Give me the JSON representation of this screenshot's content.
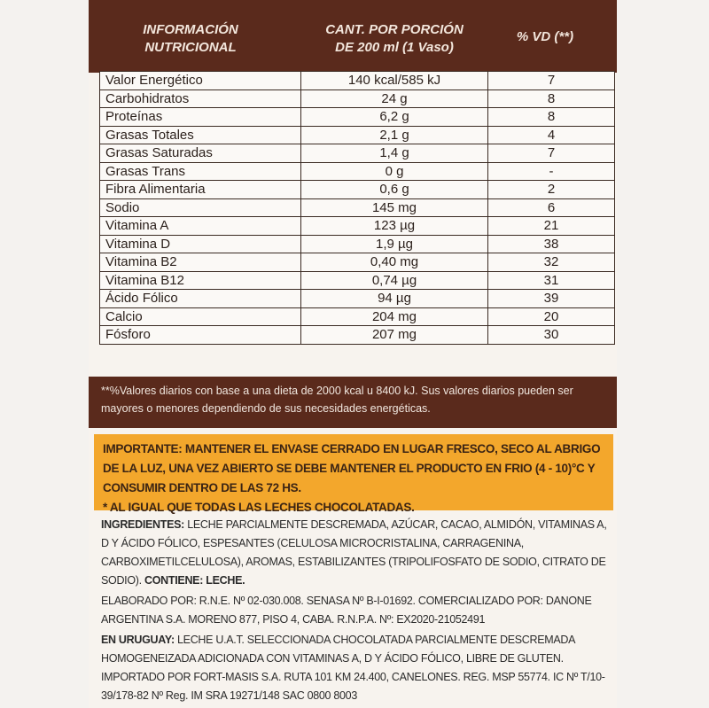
{
  "header": {
    "nutrition_title": [
      "INFORMACIÓN",
      "NUTRICIONAL"
    ],
    "portion_title": [
      "CANT. POR PORCIÓN",
      "DE 200 ml (1 Vaso)"
    ],
    "vd_title": "% VD (**)"
  },
  "table": {
    "rows": [
      [
        "Valor Energético",
        "140 kcal/585 kJ",
        "7"
      ],
      [
        "Carbohidratos",
        "24 g",
        "8"
      ],
      [
        "Proteínas",
        "6,2 g",
        "8"
      ],
      [
        "Grasas Totales",
        "2,1 g",
        "4"
      ],
      [
        "Grasas Saturadas",
        "1,4 g",
        "7"
      ],
      [
        "Grasas Trans",
        "0 g",
        "-"
      ],
      [
        "Fibra Alimentaria",
        "0,6 g",
        "2"
      ],
      [
        "Sodio",
        "145 mg",
        "6"
      ],
      [
        "Vitamina A",
        "123 µg",
        "21"
      ],
      [
        "Vitamina D",
        "1,9 µg",
        "38"
      ],
      [
        "Vitamina B2",
        "0,40 mg",
        "32"
      ],
      [
        "Vitamina B12",
        "0,74 µg",
        "31"
      ],
      [
        "Ácido Fólico",
        "94 µg",
        "39"
      ],
      [
        "Calcio",
        "204 mg",
        "20"
      ],
      [
        "Fósforo",
        "207 mg",
        "30"
      ]
    ]
  },
  "footnote": "**%Valores diarios con base a una dieta de 2000 kcal u 8400 kJ. Sus valores diarios pueden ser mayores o menores dependiendo de sus necesidades energéticas.",
  "important": {
    "label": "IMPORTANTE:",
    "text": "MANTENER EL ENVASE CERRADO EN LUGAR FRESCO, SECO AL ABRIGO DE LA LUZ, UNA VEZ ABIERTO SE DEBE MANTENER EL PRODUCTO EN FRIO (4 - 10)°C Y CONSUMIR DENTRO DE LAS 72 HS.",
    "note": "* AL IGUAL QUE TODAS LAS LECHES CHOCOLATADAS."
  },
  "ingredients": {
    "label": "INGREDIENTES:",
    "text": "LECHE PARCIALMENTE DESCREMADA, AZÚCAR, CACAO, ALMIDÓN, VITAMINAS A, D Y ÁCIDO FÓLICO, ESPESANTES (CELULOSA MICROCRISTALINA, CARRAGENINA, CARBOXIMETILCELULOSA), AROMAS, ESTABILIZANTES (TRIPOLIFOSFATO DE SODIO, CITRATO DE SODIO).",
    "contains": "CONTIENE: LECHE."
  },
  "producer": "ELABORADO POR: R.N.E. Nº 02-030.008. SENASA Nº B-I-01692. COMERCIALIZADO POR: DANONE ARGENTINA S.A. MORENO 877, PISO 4, CABA. R.N.P.A. Nº: EX2020-21052491",
  "uruguay": {
    "label": "EN URUGUAY:",
    "text": "LECHE U.A.T. SELECCIONADA CHOCOLATADA PARCIALMENTE DESCREMADA HOMOGENEIZADA ADICIONADA CON VITAMINAS A, D Y ÁCIDO FÓLICO, LIBRE DE GLUTEN. IMPORTADO POR FORT-MASIS S.A. RUTA 101 KM 24.400, CANELONES. REG. MSP 55774. IC Nº T/10-39/178-82 Nº Reg. IM SRA 19271/148 SAC 0800 8003"
  }
}
